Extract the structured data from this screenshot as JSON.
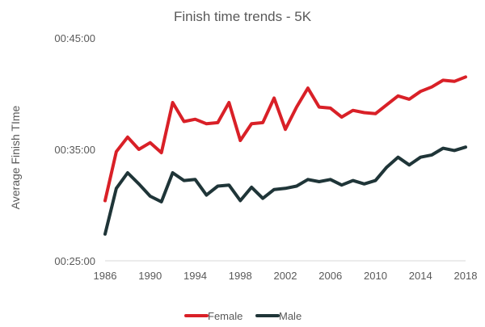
{
  "chart_data": {
    "type": "line",
    "title": "Finish time trends - 5K",
    "xlabel": "",
    "ylabel": "Average Finish TIme",
    "x": [
      1986,
      1987,
      1988,
      1989,
      1990,
      1991,
      1992,
      1993,
      1994,
      1995,
      1996,
      1997,
      1998,
      1999,
      2000,
      2001,
      2002,
      2003,
      2004,
      2005,
      2006,
      2007,
      2008,
      2009,
      2010,
      2011,
      2012,
      2013,
      2014,
      2015,
      2016,
      2017,
      2018
    ],
    "x_ticks": [
      "1986",
      "1990",
      "1994",
      "1998",
      "2002",
      "2006",
      "2010",
      "2014",
      "2018"
    ],
    "y_ticks": [
      "00:25:00",
      "00:35:00",
      "00:45:00"
    ],
    "ylim_minutes": [
      25,
      45
    ],
    "grid": false,
    "legend_position": "bottom",
    "series": [
      {
        "name": "Female",
        "color": "#d92027",
        "values_minutes": [
          30.4,
          34.8,
          36.1,
          35.0,
          35.6,
          34.7,
          39.2,
          37.5,
          37.7,
          37.3,
          37.4,
          39.2,
          35.8,
          37.3,
          37.4,
          39.6,
          36.8,
          38.8,
          40.5,
          38.8,
          38.7,
          37.9,
          38.5,
          38.3,
          38.2,
          39.0,
          39.8,
          39.5,
          40.2,
          40.6,
          41.2,
          41.1,
          41.5
        ]
      },
      {
        "name": "Male",
        "color": "#1f3538",
        "values_minutes": [
          27.4,
          31.5,
          32.9,
          31.9,
          30.8,
          30.3,
          32.9,
          32.2,
          32.3,
          30.9,
          31.7,
          31.8,
          30.4,
          31.6,
          30.6,
          31.4,
          31.5,
          31.7,
          32.3,
          32.1,
          32.3,
          31.8,
          32.2,
          31.9,
          32.2,
          33.4,
          34.3,
          33.6,
          34.3,
          34.5,
          35.1,
          34.9,
          35.2
        ]
      }
    ]
  }
}
